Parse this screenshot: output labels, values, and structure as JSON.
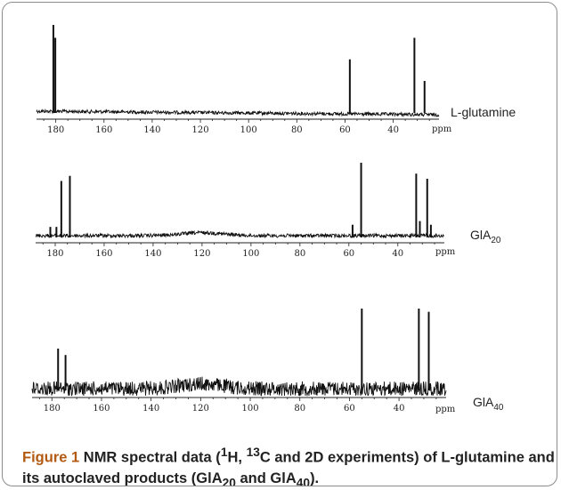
{
  "chart_data": [
    {
      "type": "line",
      "sample_label": "L-glutamine",
      "unit": "ppm",
      "x_axis": {
        "ticks": [
          180,
          160,
          140,
          120,
          100,
          80,
          60,
          40
        ],
        "reversed": true
      },
      "peaks": [
        {
          "ppm": 181.0,
          "height": 1.0
        },
        {
          "ppm": 180.2,
          "height": 0.85
        },
        {
          "ppm": 58.0,
          "height": 0.6
        },
        {
          "ppm": 31.2,
          "height": 0.85
        },
        {
          "ppm": 27.0,
          "height": 0.35
        }
      ],
      "noise": 0.02,
      "baseline_hump": {
        "center_ppm": 120,
        "height": 0.0
      }
    },
    {
      "type": "line",
      "sample_label_base": "GlA",
      "sample_label_sub": "20",
      "unit": "ppm",
      "x_axis": {
        "ticks": [
          180,
          160,
          140,
          120,
          100,
          80,
          60,
          40
        ],
        "reversed": true
      },
      "peaks": [
        {
          "ppm": 182.0,
          "height": 0.12
        },
        {
          "ppm": 179.5,
          "height": 0.12
        },
        {
          "ppm": 177.5,
          "height": 0.75
        },
        {
          "ppm": 174.0,
          "height": 0.82
        },
        {
          "ppm": 58.5,
          "height": 0.15
        },
        {
          "ppm": 55.0,
          "height": 1.0
        },
        {
          "ppm": 32.5,
          "height": 0.85
        },
        {
          "ppm": 31.0,
          "height": 0.2
        },
        {
          "ppm": 28.0,
          "height": 0.78
        },
        {
          "ppm": 26.5,
          "height": 0.15
        }
      ],
      "noise": 0.025,
      "baseline_hump": {
        "center_ppm": 120,
        "height": 0.04
      }
    },
    {
      "type": "line",
      "sample_label_base": "GlA",
      "sample_label_sub": "40",
      "unit": "ppm",
      "x_axis": {
        "ticks": [
          180,
          160,
          140,
          120,
          100,
          80,
          60,
          40
        ],
        "reversed": true
      },
      "peaks": [
        {
          "ppm": 177.5,
          "height": 0.5
        },
        {
          "ppm": 174.5,
          "height": 0.42
        },
        {
          "ppm": 55.0,
          "height": 1.0
        },
        {
          "ppm": 32.0,
          "height": 1.0
        },
        {
          "ppm": 28.0,
          "height": 0.96
        }
      ],
      "noise": 0.09,
      "baseline_hump": {
        "center_ppm": 120,
        "height": 0.06
      }
    }
  ],
  "caption": {
    "label": "Figure 1",
    "text": "NMR spectral data (1H, 13C and 2D experiments) of L-glutamine and its autoclaved products (GlA20 and GlA40).",
    "t_pre": " NMR spectral data (",
    "sup_1": "1",
    "t_h": "H, ",
    "sup_13": "13",
    "t_mid": "C and 2D experiments) of L-glutamine and its autoclaved products (GlA",
    "sub_20": "20",
    "t_and": " and GlA",
    "sub_40": "40",
    "t_end": ")."
  },
  "colors": {
    "spectrum": "#111111",
    "border": "#8c8c8c",
    "figure_label": "#b25a12"
  }
}
